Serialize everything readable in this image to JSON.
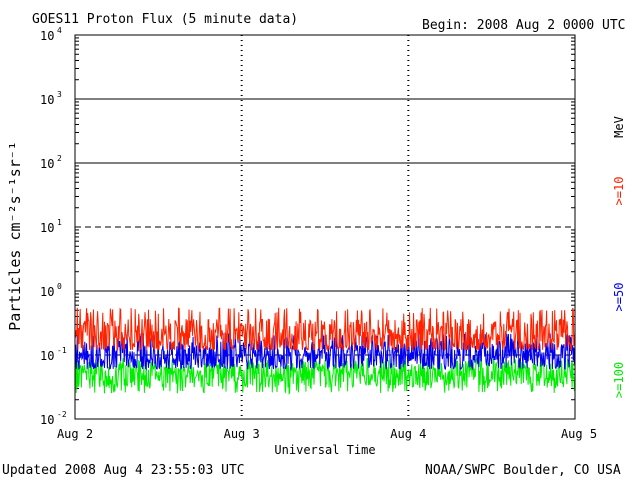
{
  "header": {
    "title": "GOES11 Proton Flux (5 minute data)",
    "begin": "Begin: 2008 Aug 2 0000 UTC"
  },
  "footer": {
    "updated": "Updated 2008 Aug  4 23:55:03 UTC",
    "credit": "NOAA/SWPC Boulder, CO USA"
  },
  "chart_data": {
    "type": "line",
    "title": "GOES11 Proton Flux (5 minute data)",
    "xlabel": "Universal Time",
    "ylabel": "Particles cm⁻²s⁻¹sr⁻¹",
    "y_scale": "log",
    "ylim": [
      0.01,
      10000
    ],
    "y_ticks": [
      {
        "base": "10",
        "exp": "4"
      },
      {
        "base": "10",
        "exp": "3"
      },
      {
        "base": "10",
        "exp": "2"
      },
      {
        "base": "10",
        "exp": "1"
      },
      {
        "base": "10",
        "exp": "0"
      },
      {
        "base": "10",
        "exp": "-1"
      },
      {
        "base": "10",
        "exp": "-2"
      }
    ],
    "x_ticks": [
      "Aug 2",
      "Aug 3",
      "Aug 4",
      "Aug 5"
    ],
    "xlim": [
      "2008-08-02 00:00",
      "2008-08-05 00:00"
    ],
    "grid": true,
    "unit_label": "MeV",
    "series": [
      {
        "name": ">=10",
        "color": "#ff2200",
        "median": 0.2,
        "spread": [
          0.12,
          0.55
        ]
      },
      {
        "name": ">=50",
        "color": "#0000ee",
        "median": 0.1,
        "spread": [
          0.06,
          0.22
        ]
      },
      {
        "name": ">=100",
        "color": "#00ee00",
        "median": 0.05,
        "spread": [
          0.025,
          0.09
        ]
      }
    ]
  }
}
